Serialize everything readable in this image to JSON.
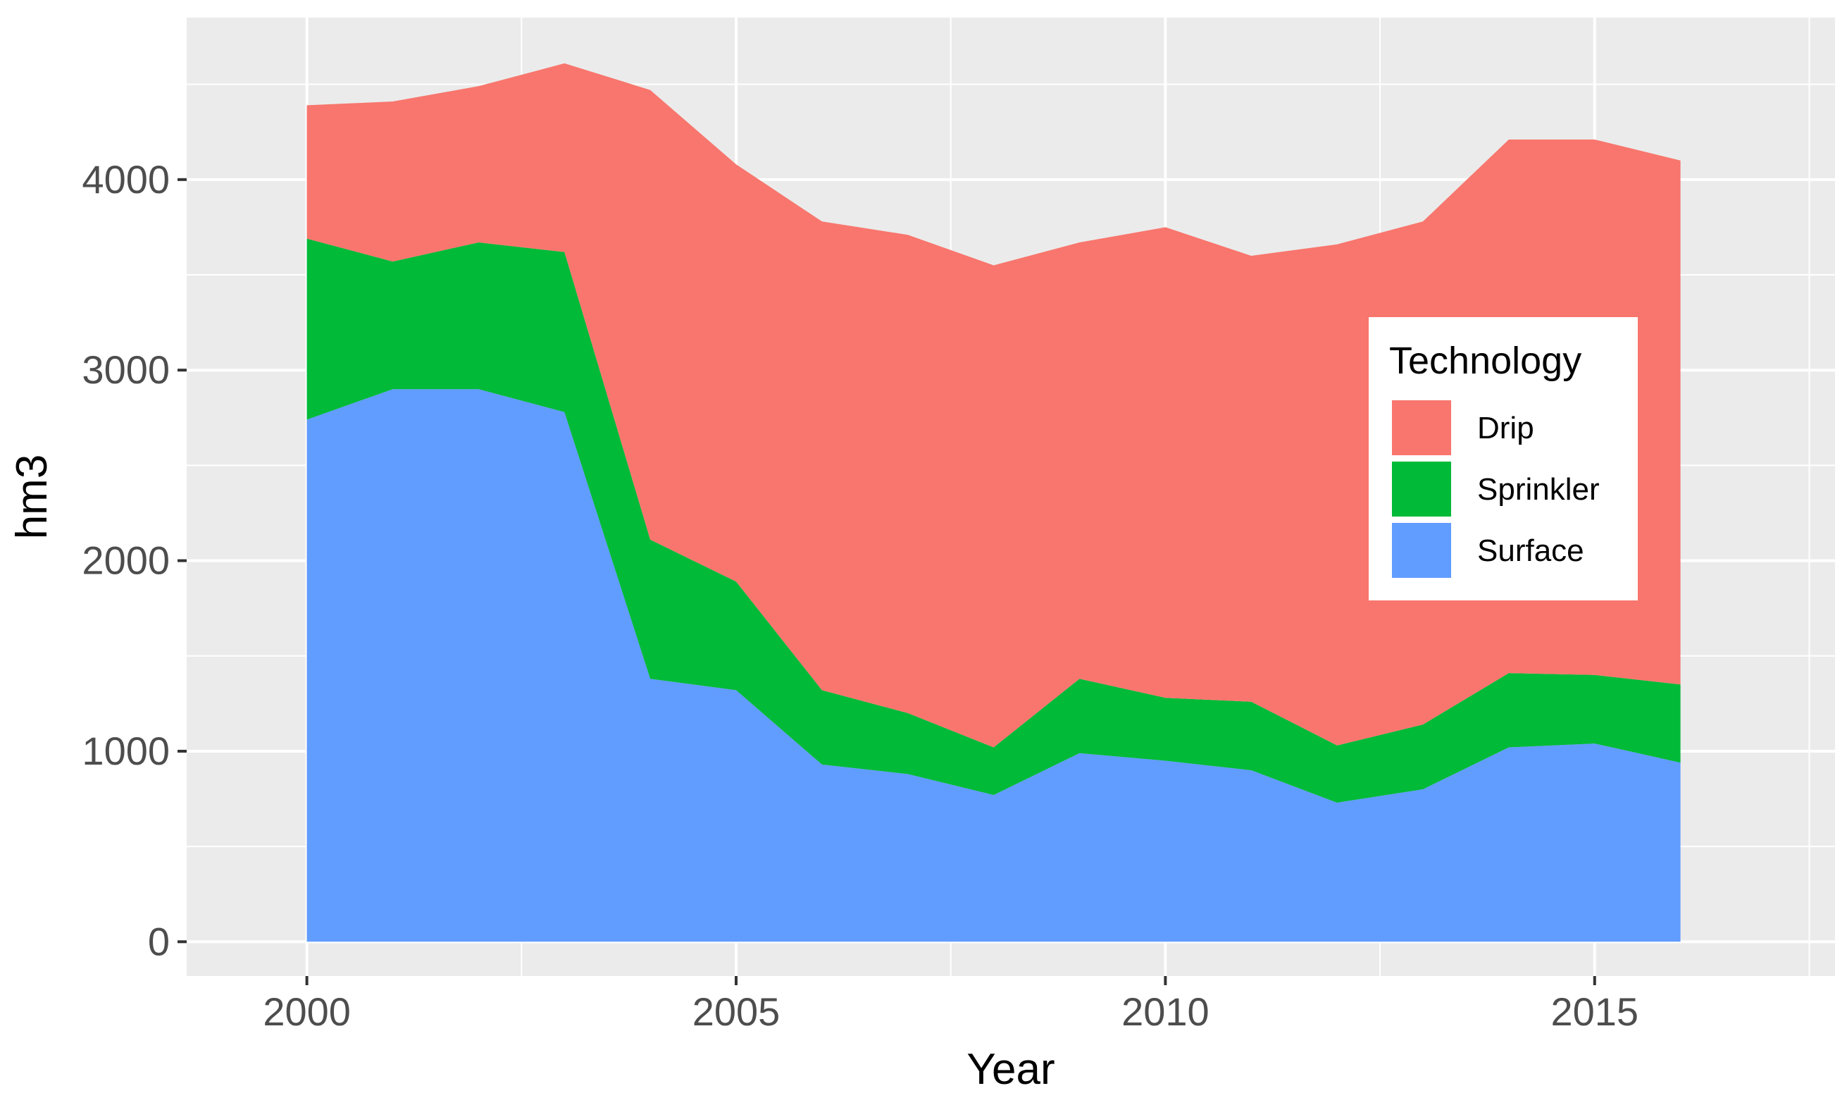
{
  "chart_data": {
    "type": "area",
    "stacked": true,
    "title": "",
    "xlabel": "Year",
    "ylabel": "hm3",
    "x": [
      2000,
      2001,
      2002,
      2003,
      2004,
      2005,
      2006,
      2007,
      2008,
      2009,
      2010,
      2011,
      2012,
      2013,
      2014,
      2015,
      2016
    ],
    "xlim": [
      1998.6,
      2017.8
    ],
    "ylim": [
      -180,
      4850
    ],
    "xticks": [
      2000,
      2005,
      2010,
      2015
    ],
    "xtick_labels": [
      "2000",
      "2005",
      "2010",
      "2015"
    ],
    "xminor": [
      2002.5,
      2007.5,
      2012.5,
      2017.5
    ],
    "yticks": [
      0,
      1000,
      2000,
      3000,
      4000
    ],
    "ytick_labels": [
      "0",
      "1000",
      "2000",
      "3000",
      "4000"
    ],
    "yminor": [
      500,
      1500,
      2500,
      3500,
      4500
    ],
    "grid": true,
    "legend_title": "Technology",
    "legend_position": "right",
    "series": [
      {
        "name": "Surface",
        "color": "#619CFF",
        "values": [
          2740,
          2900,
          2900,
          2780,
          1380,
          1320,
          930,
          880,
          770,
          990,
          950,
          900,
          730,
          800,
          1020,
          1040,
          940
        ]
      },
      {
        "name": "Sprinkler",
        "color": "#00BA38",
        "values": [
          950,
          670,
          770,
          840,
          730,
          570,
          390,
          320,
          250,
          390,
          330,
          360,
          300,
          340,
          390,
          360,
          410
        ]
      },
      {
        "name": "Drip",
        "color": "#F8766D",
        "values": [
          700,
          840,
          820,
          990,
          2360,
          2190,
          2460,
          2510,
          2530,
          2290,
          2470,
          2340,
          2630,
          2640,
          2800,
          2810,
          2750
        ]
      }
    ],
    "legend_order": [
      "Drip",
      "Sprinkler",
      "Surface"
    ],
    "panel_background": "#EBEBEB",
    "grid_color": "#FFFFFF"
  }
}
